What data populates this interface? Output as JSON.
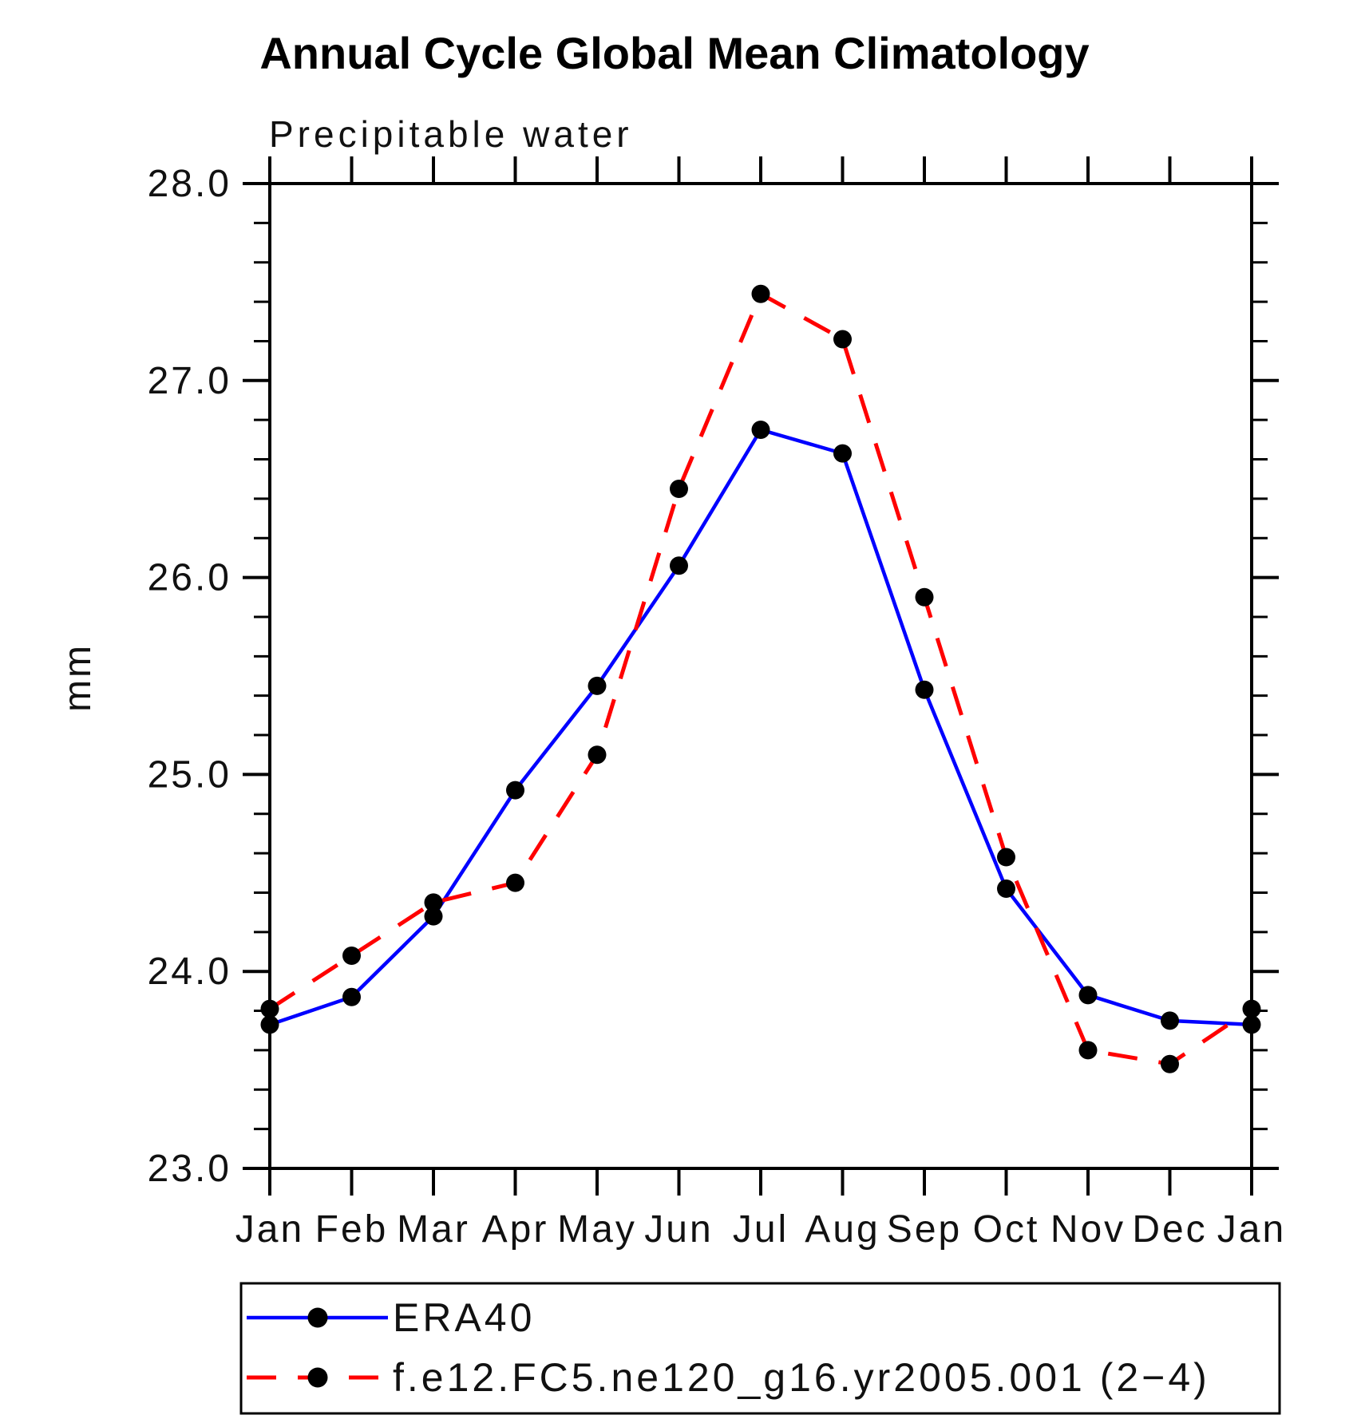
{
  "header": {
    "title": "Annual Cycle Global Mean Climatology",
    "subtitle": "Precipitable water"
  },
  "chart_data": {
    "type": "line",
    "title": "Annual Cycle Global Mean Climatology",
    "subtitle": "Precipitable water",
    "ylabel": "mm",
    "xlabel": "",
    "ylim": [
      23.0,
      28.0
    ],
    "ytick_step": 1.0,
    "ytick_minor_step": 0.2,
    "ytick_labels": [
      "23.0",
      "24.0",
      "25.0",
      "26.0",
      "27.0",
      "28.0"
    ],
    "categories": [
      "Jan",
      "Feb",
      "Mar",
      "Apr",
      "May",
      "Jun",
      "Jul",
      "Aug",
      "Sep",
      "Oct",
      "Nov",
      "Dec",
      "Jan"
    ],
    "series": [
      {
        "name": "ERA40",
        "color": "#0000ff",
        "line_style": "solid",
        "marker": "filled-circle",
        "marker_color": "#000000",
        "values": [
          23.73,
          23.87,
          24.28,
          24.92,
          25.45,
          26.06,
          26.75,
          26.63,
          25.43,
          24.42,
          23.88,
          23.75,
          23.73
        ]
      },
      {
        "name": "f.e12.FC5.ne120_g16.yr2005.001 (2−4)",
        "color": "#ff0000",
        "line_style": "dashed",
        "marker": "filled-circle",
        "marker_color": "#000000",
        "values": [
          23.81,
          24.08,
          24.35,
          24.45,
          25.1,
          26.45,
          27.44,
          27.21,
          25.9,
          24.58,
          23.6,
          23.53,
          23.81
        ]
      }
    ],
    "grid": false,
    "legend_position": "bottom",
    "axis_color": "#000000",
    "background_color": "#ffffff"
  },
  "legend": {
    "items": [
      {
        "label": "ERA40"
      },
      {
        "label": "f.e12.FC5.ne120_g16.yr2005.001 (2−4)"
      }
    ]
  }
}
